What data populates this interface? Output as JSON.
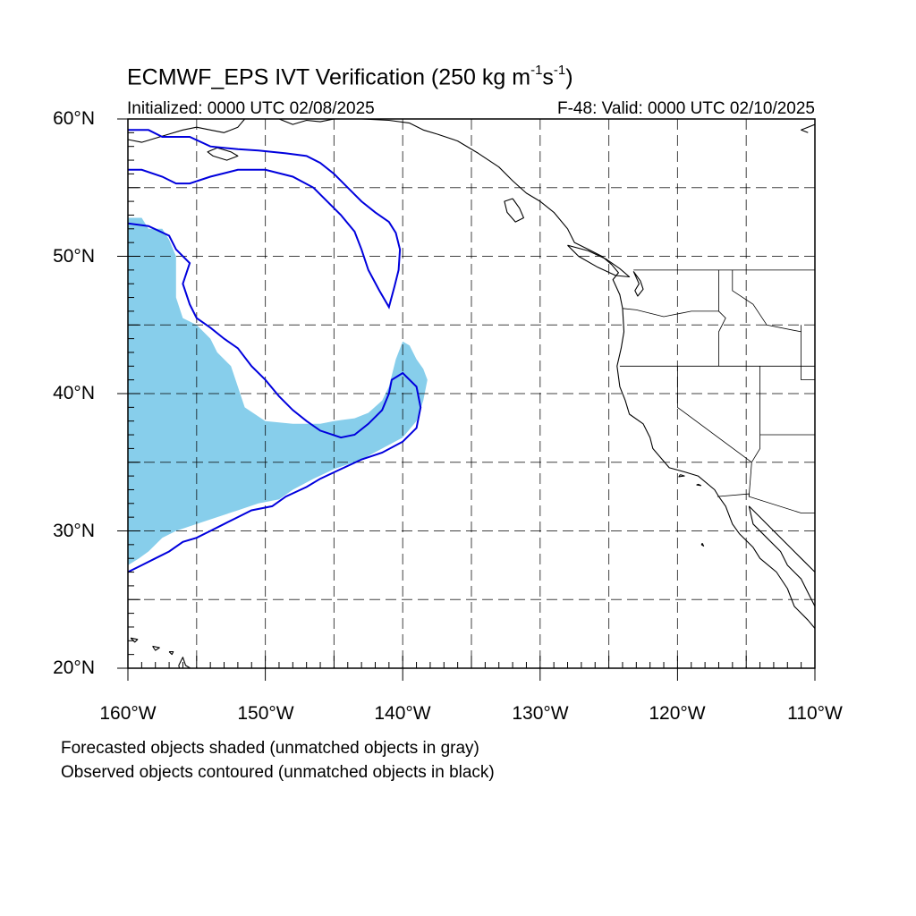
{
  "title_main": "ECMWF_EPS IVT Verification (250 kg m",
  "title_exp1": "-1",
  "title_mid": "s",
  "title_exp2": "-1",
  "title_end": ")",
  "initialized": "Initialized: 0000 UTC 02/08/2025",
  "valid": "F-48: Valid: 0000 UTC 02/10/2025",
  "notes": [
    "Forecasted objects shaded (unmatched objects in gray)",
    "Observed objects contoured (unmatched objects in black)"
  ],
  "colors": {
    "forecast_fill": "#87CEEB",
    "observed_contour": "#0000DD",
    "coastline": "#000000",
    "grid": "#000000"
  },
  "map": {
    "lon_range": [
      -160,
      -110
    ],
    "lat_range": [
      20,
      60
    ],
    "lat_labels": [
      "60°N",
      "50°N",
      "40°N",
      "30°N",
      "20°N"
    ],
    "lon_labels": [
      "160°W",
      "150°W",
      "140°W",
      "130°W",
      "120°W",
      "110°W"
    ],
    "grid_lines": "dashed, every 5°",
    "forecast_object": [
      [
        -159.8,
        52.8
      ],
      [
        -159.0,
        52.8
      ],
      [
        -158.5,
        52.0
      ],
      [
        -157.5,
        52.0
      ],
      [
        -157.0,
        51.2
      ],
      [
        -156.5,
        50.0
      ],
      [
        -156.5,
        47.0
      ],
      [
        -156.0,
        45.5
      ],
      [
        -155.0,
        45.0
      ],
      [
        -154.0,
        44.0
      ],
      [
        -153.5,
        43.0
      ],
      [
        -152.5,
        42.0
      ],
      [
        -152.0,
        40.5
      ],
      [
        -151.5,
        39.0
      ],
      [
        -150.0,
        38.0
      ],
      [
        -148.0,
        37.8
      ],
      [
        -146.0,
        37.8
      ],
      [
        -145.0,
        38.0
      ],
      [
        -143.5,
        38.2
      ],
      [
        -142.5,
        38.6
      ],
      [
        -141.5,
        39.5
      ],
      [
        -141.0,
        40.5
      ],
      [
        -140.5,
        42.5
      ],
      [
        -140.0,
        43.8
      ],
      [
        -139.5,
        43.5
      ],
      [
        -139.0,
        42.5
      ],
      [
        -138.5,
        41.8
      ],
      [
        -138.2,
        41.0
      ],
      [
        -138.5,
        39.5
      ],
      [
        -139.0,
        38.0
      ],
      [
        -140.0,
        36.8
      ],
      [
        -141.5,
        36.0
      ],
      [
        -143.0,
        35.2
      ],
      [
        -145.0,
        34.5
      ],
      [
        -146.5,
        33.8
      ],
      [
        -148.0,
        33.0
      ],
      [
        -149.0,
        32.3
      ],
      [
        -150.5,
        32.0
      ],
      [
        -152.0,
        31.5
      ],
      [
        -153.5,
        31.0
      ],
      [
        -155.0,
        30.5
      ],
      [
        -156.5,
        30.0
      ],
      [
        -157.5,
        29.5
      ],
      [
        -158.5,
        28.5
      ],
      [
        -159.2,
        28.0
      ],
      [
        -160.0,
        27.5
      ],
      [
        -160.0,
        52.8
      ]
    ],
    "observed_objects": [
      [
        [
          -160.0,
          52.4
        ],
        [
          -158.5,
          52.2
        ],
        [
          -157.0,
          51.5
        ],
        [
          -156.5,
          50.5
        ],
        [
          -155.5,
          49.5
        ],
        [
          -156.0,
          48.0
        ],
        [
          -155.5,
          46.5
        ],
        [
          -155.0,
          45.5
        ],
        [
          -154.0,
          44.8
        ],
        [
          -153.0,
          44.0
        ],
        [
          -152.0,
          43.3
        ],
        [
          -151.0,
          42.0
        ],
        [
          -150.0,
          41.0
        ],
        [
          -149.0,
          39.8
        ],
        [
          -148.0,
          38.8
        ],
        [
          -147.0,
          38.0
        ],
        [
          -146.0,
          37.3
        ],
        [
          -144.5,
          36.8
        ],
        [
          -143.5,
          37.0
        ],
        [
          -142.5,
          37.8
        ],
        [
          -141.5,
          38.8
        ],
        [
          -141.0,
          40.0
        ],
        [
          -140.8,
          41.0
        ],
        [
          -140.0,
          41.5
        ],
        [
          -139.0,
          40.5
        ],
        [
          -138.7,
          39.0
        ],
        [
          -139.0,
          37.5
        ],
        [
          -140.0,
          36.5
        ],
        [
          -141.5,
          35.7
        ],
        [
          -143.0,
          35.2
        ],
        [
          -144.5,
          34.5
        ],
        [
          -146.0,
          33.8
        ],
        [
          -147.0,
          33.2
        ],
        [
          -148.5,
          32.5
        ],
        [
          -149.5,
          31.8
        ],
        [
          -151.0,
          31.5
        ],
        [
          -152.0,
          31.0
        ],
        [
          -153.0,
          30.5
        ],
        [
          -154.0,
          30.0
        ],
        [
          -155.0,
          29.5
        ],
        [
          -156.0,
          29.2
        ],
        [
          -157.0,
          28.5
        ],
        [
          -158.0,
          28.0
        ],
        [
          -159.0,
          27.5
        ],
        [
          -160.0,
          27.0
        ]
      ],
      [
        [
          -160.0,
          59.2
        ],
        [
          -158.5,
          59.2
        ],
        [
          -157.5,
          58.7
        ],
        [
          -155.5,
          58.7
        ],
        [
          -154.0,
          58.0
        ],
        [
          -152.0,
          57.8
        ],
        [
          -150.5,
          57.7
        ],
        [
          -148.5,
          57.5
        ],
        [
          -147.0,
          57.3
        ],
        [
          -146.0,
          56.8
        ],
        [
          -145.0,
          56.0
        ],
        [
          -144.0,
          55.0
        ],
        [
          -143.0,
          54.0
        ],
        [
          -142.0,
          53.2
        ],
        [
          -141.0,
          52.5
        ],
        [
          -140.5,
          51.7
        ],
        [
          -140.2,
          50.5
        ],
        [
          -140.3,
          49.0
        ],
        [
          -140.6,
          47.8
        ],
        [
          -141.0,
          46.3
        ],
        [
          -141.7,
          47.5
        ],
        [
          -142.5,
          49.0
        ],
        [
          -143.0,
          50.5
        ],
        [
          -143.5,
          51.8
        ],
        [
          -144.5,
          53.0
        ],
        [
          -145.5,
          54.0
        ],
        [
          -146.5,
          55.0
        ],
        [
          -148.0,
          55.8
        ],
        [
          -150.0,
          56.3
        ],
        [
          -152.0,
          56.3
        ],
        [
          -154.0,
          55.8
        ],
        [
          -155.5,
          55.3
        ],
        [
          -156.5,
          55.3
        ],
        [
          -157.5,
          55.8
        ],
        [
          -159.0,
          56.3
        ],
        [
          -160.0,
          56.3
        ]
      ]
    ],
    "coastlines": [
      [
        [
          -137.5,
          58.9
        ],
        [
          -136.0,
          58.4
        ],
        [
          -134.5,
          57.5
        ],
        [
          -133.0,
          56.5
        ],
        [
          -132.0,
          55.5
        ],
        [
          -131.0,
          54.6
        ],
        [
          -130.0,
          54.0
        ],
        [
          -129.0,
          53.2
        ],
        [
          -128.0,
          52.0
        ],
        [
          -127.5,
          51.0
        ],
        [
          -126.5,
          50.5
        ],
        [
          -125.5,
          50.0
        ],
        [
          -124.8,
          49.4
        ],
        [
          -124.3,
          48.8
        ],
        [
          -124.7,
          48.3
        ],
        [
          -124.2,
          47.2
        ],
        [
          -124.0,
          46.2
        ],
        [
          -123.9,
          44.5
        ],
        [
          -124.1,
          43.3
        ],
        [
          -124.4,
          42.0
        ],
        [
          -124.2,
          40.5
        ],
        [
          -123.8,
          39.5
        ],
        [
          -123.5,
          38.5
        ],
        [
          -122.5,
          37.8
        ],
        [
          -122.0,
          36.8
        ],
        [
          -121.8,
          36.0
        ],
        [
          -120.6,
          34.6
        ],
        [
          -119.5,
          34.3
        ],
        [
          -118.5,
          34.0
        ],
        [
          -117.3,
          33.0
        ],
        [
          -117.0,
          32.5
        ],
        [
          -116.5,
          31.8
        ],
        [
          -116.0,
          30.5
        ],
        [
          -115.5,
          29.8
        ],
        [
          -114.5,
          28.8
        ],
        [
          -114.0,
          28.0
        ],
        [
          -112.8,
          27.0
        ],
        [
          -112.0,
          25.8
        ],
        [
          -111.5,
          24.5
        ],
        [
          -110.5,
          23.5
        ],
        [
          -110.0,
          22.9
        ]
      ],
      [
        [
          -114.8,
          31.8
        ],
        [
          -114.5,
          30.5
        ],
        [
          -113.5,
          29.5
        ],
        [
          -112.5,
          28.5
        ],
        [
          -112.0,
          27.5
        ],
        [
          -111.0,
          26.5
        ],
        [
          -110.5,
          25.5
        ],
        [
          -110.0,
          24.5
        ]
      ],
      [
        [
          -110.0,
          27.0
        ],
        [
          -111.0,
          28.0
        ],
        [
          -112.0,
          29.0
        ],
        [
          -113.0,
          30.0
        ],
        [
          -114.0,
          31.0
        ],
        [
          -114.8,
          31.8
        ]
      ],
      [
        [
          -110.0,
          59.6
        ],
        [
          -111.0,
          59.2
        ],
        [
          -110.5,
          59.0
        ]
      ],
      [
        [
          -160.0,
          58.5
        ],
        [
          -159.0,
          58.3
        ],
        [
          -158.0,
          58.6
        ],
        [
          -157.0,
          58.9
        ],
        [
          -156.0,
          59.2
        ],
        [
          -155.0,
          59.4
        ]
      ],
      [
        [
          -155.0,
          59.4
        ],
        [
          -154.0,
          59.2
        ],
        [
          -153.0,
          59.0
        ],
        [
          -152.0,
          59.4
        ],
        [
          -151.5,
          60.0
        ]
      ],
      [
        [
          -149.0,
          60.0
        ],
        [
          -148.0,
          59.6
        ],
        [
          -147.0,
          59.9
        ],
        [
          -146.0,
          59.8
        ],
        [
          -145.0,
          60.0
        ]
      ],
      [
        [
          -143.0,
          60.0
        ],
        [
          -141.0,
          59.9
        ],
        [
          -139.5,
          59.7
        ],
        [
          -138.5,
          59.2
        ],
        [
          -137.5,
          58.9
        ]
      ],
      [
        [
          -153.5,
          57.9
        ],
        [
          -152.5,
          57.6
        ],
        [
          -152.0,
          57.3
        ],
        [
          -152.8,
          57.0
        ],
        [
          -153.8,
          57.3
        ],
        [
          -154.2,
          57.6
        ],
        [
          -153.5,
          57.9
        ]
      ],
      [
        [
          -132.0,
          54.2
        ],
        [
          -131.5,
          53.5
        ],
        [
          -131.2,
          52.8
        ],
        [
          -131.8,
          52.5
        ],
        [
          -132.4,
          53.2
        ],
        [
          -132.6,
          54.0
        ],
        [
          -132.0,
          54.2
        ]
      ],
      [
        [
          -128.0,
          50.8
        ],
        [
          -126.5,
          50.4
        ],
        [
          -125.2,
          49.8
        ],
        [
          -124.2,
          49.1
        ],
        [
          -123.5,
          48.5
        ],
        [
          -124.5,
          48.6
        ],
        [
          -125.8,
          49.2
        ],
        [
          -127.2,
          50.0
        ],
        [
          -128.0,
          50.8
        ]
      ],
      [
        [
          -123.2,
          48.9
        ],
        [
          -122.7,
          48.2
        ],
        [
          -122.5,
          47.6
        ],
        [
          -122.9,
          47.1
        ],
        [
          -123.1,
          47.5
        ],
        [
          -122.8,
          48.0
        ],
        [
          -123.2,
          48.9
        ]
      ],
      [
        [
          -156.3,
          20.2
        ],
        [
          -156.0,
          20.8
        ],
        [
          -155.8,
          20.2
        ],
        [
          -155.1,
          19.8
        ],
        [
          -155.7,
          19.0
        ],
        [
          -156.1,
          19.4
        ],
        [
          -156.3,
          20.2
        ]
      ],
      [
        [
          -157.0,
          21.2
        ],
        [
          -156.7,
          21.2
        ],
        [
          -156.8,
          21.0
        ],
        [
          -157.0,
          21.2
        ]
      ],
      [
        [
          -158.2,
          21.6
        ],
        [
          -157.7,
          21.5
        ],
        [
          -158.0,
          21.3
        ],
        [
          -158.2,
          21.6
        ]
      ],
      [
        [
          -159.8,
          22.2
        ],
        [
          -159.3,
          22.1
        ],
        [
          -159.5,
          21.9
        ],
        [
          -159.8,
          22.2
        ]
      ],
      [
        [
          -119.8,
          34.1
        ],
        [
          -119.5,
          34.0
        ],
        [
          -119.9,
          33.95
        ],
        [
          -119.8,
          34.1
        ]
      ],
      [
        [
          -118.5,
          33.4
        ],
        [
          -118.3,
          33.3
        ],
        [
          -118.6,
          33.35
        ],
        [
          -118.5,
          33.4
        ]
      ],
      [
        [
          -118.2,
          29.1
        ],
        [
          -118.1,
          28.9
        ],
        [
          -118.25,
          29.0
        ],
        [
          -118.2,
          29.1
        ]
      ]
    ],
    "borders": [
      [
        [
          -123.2,
          49.0
        ],
        [
          -110.0,
          49.0
        ]
      ],
      [
        [
          -124.2,
          42.0
        ],
        [
          -110.0,
          42.0
        ]
      ],
      [
        [
          -120.0,
          42.0
        ],
        [
          -120.0,
          39.0
        ],
        [
          -114.6,
          35.0
        ]
      ],
      [
        [
          -117.0,
          49.0
        ],
        [
          -117.0,
          46.0
        ],
        [
          -116.5,
          45.5
        ],
        [
          -117.0,
          44.5
        ],
        [
          -117.0,
          42.0
        ]
      ],
      [
        [
          -124.0,
          46.2
        ],
        [
          -123.0,
          46.1
        ],
        [
          -121.0,
          45.6
        ],
        [
          -119.0,
          46.0
        ],
        [
          -117.0,
          46.0
        ]
      ],
      [
        [
          -116.0,
          49.0
        ],
        [
          -116.0,
          47.5
        ],
        [
          -114.5,
          46.5
        ],
        [
          -113.5,
          45.0
        ],
        [
          -111.0,
          44.5
        ]
      ],
      [
        [
          -114.0,
          42.0
        ],
        [
          -114.0,
          36.0
        ],
        [
          -114.6,
          35.0
        ]
      ],
      [
        [
          -114.0,
          37.0
        ],
        [
          -110.0,
          37.0
        ]
      ],
      [
        [
          -111.0,
          45.0
        ],
        [
          -111.0,
          41.0
        ],
        [
          -110.0,
          41.0
        ]
      ],
      [
        [
          -117.1,
          32.5
        ],
        [
          -114.8,
          32.7
        ],
        [
          -114.8,
          32.5
        ],
        [
          -111.0,
          31.3
        ],
        [
          -110.0,
          31.3
        ]
      ],
      [
        [
          -114.6,
          35.0
        ],
        [
          -114.8,
          32.5
        ]
      ]
    ]
  }
}
